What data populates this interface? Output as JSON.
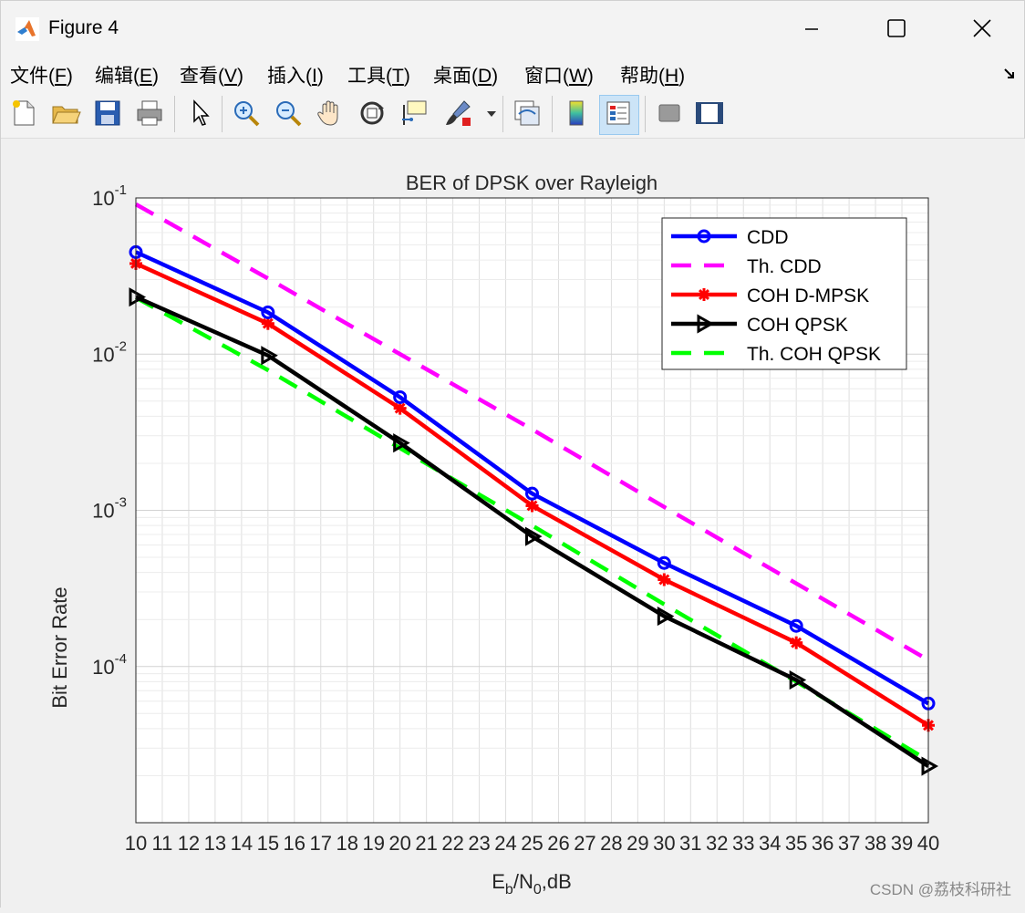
{
  "window": {
    "title": "Figure 4"
  },
  "menu": [
    {
      "label": "文件(",
      "key": "F",
      "tail": ")"
    },
    {
      "label": "编辑(",
      "key": "E",
      "tail": ")"
    },
    {
      "label": "查看(",
      "key": "V",
      "tail": ")"
    },
    {
      "label": "插入(",
      "key": "I",
      "tail": ")"
    },
    {
      "label": "工具(",
      "key": "T",
      "tail": ")"
    },
    {
      "label": "桌面(",
      "key": "D",
      "tail": ")"
    },
    {
      "label": "窗口(",
      "key": "W",
      "tail": ")"
    },
    {
      "label": "帮助(",
      "key": "H",
      "tail": ")"
    }
  ],
  "toolbar": {
    "icons": [
      "new-file-icon",
      "open-folder-icon",
      "save-icon",
      "print-icon",
      "pointer-icon",
      "zoom-in-icon",
      "zoom-out-icon",
      "pan-hand-icon",
      "rotate-3d-icon",
      "data-cursor-icon",
      "brush-icon",
      "link-plot-icon",
      "colorbar-icon",
      "legend-icon",
      "hide-plot-tools-icon",
      "show-plot-tools-icon"
    ]
  },
  "watermark": "CSDN @荔枝科研社",
  "colors": {
    "cdd": "#0000ff",
    "th_cdd": "#ff00ff",
    "coh_dmpsk": "#ff0000",
    "coh_qpsk": "#000000",
    "th_coh_qpsk": "#00ff00"
  },
  "chart_data": {
    "type": "line",
    "title": "BER of DPSK over Rayleigh",
    "ylabel": "Bit Error Rate",
    "xlabel_main": "E",
    "xlabel_sub1": "b",
    "xlabel_mid": "/N",
    "xlabel_sub2": "0",
    "xlabel_tail": ",dB",
    "xlim": [
      10,
      40
    ],
    "ylim": [
      1e-05,
      0.1
    ],
    "yscale": "log",
    "grid": true,
    "legend_position": "top-right",
    "x": [
      10,
      15,
      20,
      25,
      30,
      35,
      40
    ],
    "xticks": [
      10,
      11,
      12,
      13,
      14,
      15,
      16,
      17,
      18,
      19,
      20,
      21,
      22,
      23,
      24,
      25,
      26,
      27,
      28,
      29,
      30,
      31,
      32,
      33,
      34,
      35,
      36,
      37,
      38,
      39,
      40
    ],
    "yticks": [
      {
        "value": 0.1,
        "base": "10",
        "exp": "-1"
      },
      {
        "value": 0.01,
        "base": "10",
        "exp": "-2"
      },
      {
        "value": 0.001,
        "base": "10",
        "exp": "-3"
      },
      {
        "value": 0.0001,
        "base": "10",
        "exp": "-4"
      }
    ],
    "series": [
      {
        "name": "CDD",
        "values": [
          0.045,
          0.0185,
          0.0053,
          0.00128,
          0.00046,
          0.000182,
          5.8e-05
        ],
        "color": "#0000ff",
        "style": "solid",
        "marker": "circle"
      },
      {
        "name": "Th. CDD",
        "values": [
          0.091,
          0.0305,
          0.01,
          0.0033,
          0.00105,
          0.00034,
          0.00011
        ],
        "color": "#ff00ff",
        "style": "dashed",
        "marker": "none"
      },
      {
        "name": "COH D-MPSK",
        "values": [
          0.038,
          0.0157,
          0.0045,
          0.00107,
          0.00036,
          0.000142,
          4.2e-05
        ],
        "color": "#ff0000",
        "style": "solid",
        "marker": "star"
      },
      {
        "name": "COH QPSK",
        "values": [
          0.0232,
          0.0098,
          0.0027,
          0.00068,
          0.00021,
          8.2e-05,
          2.3e-05
        ],
        "color": "#000000",
        "style": "solid",
        "marker": "triangle-right"
      },
      {
        "name": "Th. COH QPSK",
        "values": [
          0.023,
          0.0079,
          0.0025,
          0.0008,
          0.00025,
          8e-05,
          2.5e-05
        ],
        "color": "#00ff00",
        "style": "dashed",
        "marker": "none"
      }
    ]
  }
}
